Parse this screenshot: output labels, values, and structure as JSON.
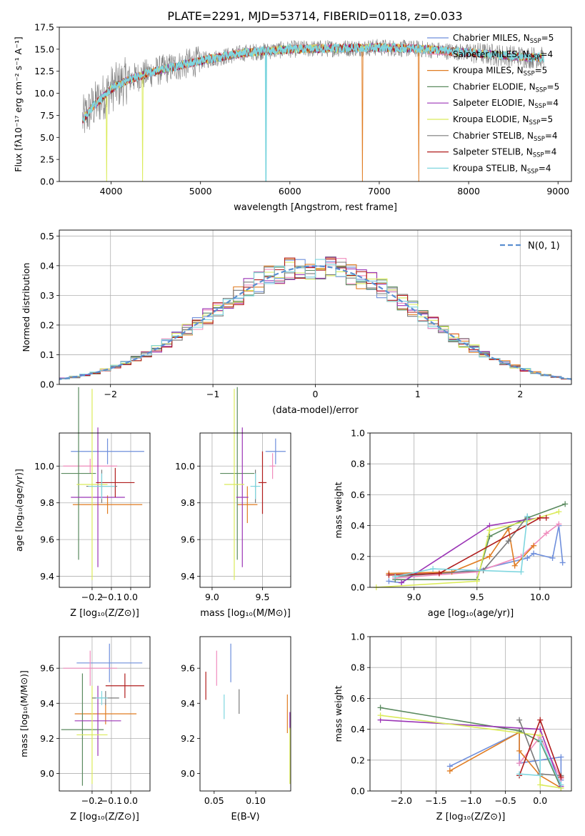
{
  "title": "PLATE=2291, MJD=53714, FIBERID=0118, z=0.033",
  "colors": {
    "Chabrier MILES": "#6f8fdc",
    "Salpeter MILES": "#f08cbd",
    "Kroupa MILES": "#e07c22",
    "Chabrier ELODIE": "#5a8a5f",
    "Salpeter ELODIE": "#9b35b6",
    "Kroupa ELODIE": "#dbeb5a",
    "Chabrier STELIB": "#7a7a7a",
    "Salpeter STELIB": "#b01c1c",
    "Kroupa STELIB": "#7fd6df",
    "normal": "#5b8fd0"
  },
  "chart_data": [
    {
      "id": "spectrum",
      "type": "line",
      "xlabel": "wavelength [Angstrom, rest frame]",
      "ylabel": "Flux [fλ10⁻¹⁷ erg cm⁻² s⁻¹ A⁻¹]",
      "xlim": [
        3420,
        9150
      ],
      "ylim": [
        0,
        17.5
      ],
      "xticks": [
        4000,
        5000,
        6000,
        7000,
        8000,
        9000
      ],
      "yticks": [
        0.0,
        2.5,
        5.0,
        7.5,
        10.0,
        12.5,
        15.0,
        17.5
      ],
      "ytick_labels": [
        "0.0",
        "2.5",
        "5.0",
        "7.5",
        "10.0",
        "12.5",
        "15.0",
        "17.5"
      ],
      "grid": false,
      "continuum": {
        "x": [
          3680,
          3800,
          4000,
          4200,
          4500,
          5000,
          5500,
          6000,
          6500,
          7000,
          7500,
          8000,
          8500,
          8840
        ],
        "y": [
          7.0,
          8.5,
          10.5,
          11.6,
          12.5,
          13.7,
          14.6,
          15.0,
          15.1,
          15.2,
          15.0,
          14.6,
          14.2,
          14.0
        ]
      },
      "legend": {
        "placement": "upper right",
        "entries": [
          {
            "key": "Chabrier MILES",
            "label": "Chabrier MILES, N",
            "sub": "SSP",
            "suffix": "=5"
          },
          {
            "key": "Salpeter MILES",
            "label": "Salpeter MILES, N",
            "sub": "SSP",
            "suffix": "=4"
          },
          {
            "key": "Kroupa MILES",
            "label": "Kroupa MILES, N",
            "sub": "SSP",
            "suffix": "=5"
          },
          {
            "key": "Chabrier ELODIE",
            "label": "Chabrier ELODIE, N",
            "sub": "SSP",
            "suffix": "=5"
          },
          {
            "key": "Salpeter ELODIE",
            "label": "Salpeter ELODIE, N",
            "sub": "SSP",
            "suffix": "=4"
          },
          {
            "key": "Kroupa ELODIE",
            "label": "Kroupa ELODIE, N",
            "sub": "SSP",
            "suffix": "=5"
          },
          {
            "key": "Chabrier STELIB",
            "label": "Chabrier STELIB, N",
            "sub": "SSP",
            "suffix": "=4"
          },
          {
            "key": "Salpeter STELIB",
            "label": "Salpeter STELIB, N",
            "sub": "SSP",
            "suffix": "=4"
          },
          {
            "key": "Kroupa STELIB",
            "label": "Kroupa STELIB, N",
            "sub": "SSP",
            "suffix": "=4"
          }
        ]
      }
    },
    {
      "id": "residuals",
      "type": "line",
      "xlabel": "(data-model)/error",
      "ylabel": "Normed distribution",
      "xlim": [
        -2.5,
        2.5
      ],
      "ylim": [
        0,
        0.52
      ],
      "xticks": [
        -2,
        -1,
        0,
        1,
        2
      ],
      "xtick_labels": [
        "−2",
        "−1",
        "0",
        "1",
        "2"
      ],
      "yticks": [
        0.0,
        0.1,
        0.2,
        0.3,
        0.4,
        0.5
      ],
      "ytick_labels": [
        "0.0",
        "0.1",
        "0.2",
        "0.3",
        "0.4",
        "0.5"
      ],
      "grid": true,
      "legend_label": "N(0, 1)",
      "legend_placement": "upper right",
      "bin_width": 0.1
    },
    {
      "id": "age-vs-z",
      "type": "scatter",
      "xlabel": "Z [log₁₀(Z/Z⊙)]",
      "ylabel": "age  [log₁₀(age/yr)]",
      "xlim": [
        -0.37,
        0.1
      ],
      "ylim": [
        9.34,
        10.18
      ],
      "xticks": [
        -0.2,
        -0.1,
        0.0
      ],
      "xtick_labels": [
        "−0.2",
        "−0.1",
        "0.0"
      ],
      "yticks": [
        9.4,
        9.6,
        9.8,
        10.0
      ],
      "ytick_labels": [
        "9.4",
        "9.6",
        "9.8",
        "10.0"
      ],
      "grid": true,
      "points": [
        {
          "key": "Chabrier MILES",
          "x": -0.12,
          "y": 10.08,
          "xerr": 0.19,
          "yerr": 0.07
        },
        {
          "key": "Salpeter MILES",
          "x": -0.21,
          "y": 10.0,
          "xerr": 0.14,
          "yerr": 0.04
        },
        {
          "key": "Kroupa MILES",
          "x": -0.12,
          "y": 9.79,
          "xerr": 0.18,
          "yerr": 0.05
        },
        {
          "key": "Chabrier ELODIE",
          "x": -0.27,
          "y": 9.96,
          "xerr": 0.09,
          "yerr": 0.47
        },
        {
          "key": "Salpeter ELODIE",
          "x": -0.17,
          "y": 9.83,
          "xerr": 0.14,
          "yerr": 0.38
        },
        {
          "key": "Kroupa ELODIE",
          "x": -0.2,
          "y": 9.9,
          "xerr": 0.08,
          "yerr": 0.52
        },
        {
          "key": "Chabrier STELIB",
          "x": -0.15,
          "y": 9.89,
          "xerr": 0.08,
          "yerr": 0.09
        },
        {
          "key": "Salpeter STELIB",
          "x": -0.08,
          "y": 9.91,
          "xerr": 0.1,
          "yerr": 0.08
        },
        {
          "key": "Kroupa STELIB",
          "x": -0.15,
          "y": 9.89,
          "xerr": 0.07,
          "yerr": 0.07
        }
      ]
    },
    {
      "id": "age-vs-mass",
      "type": "scatter",
      "xlabel": "mass [log₁₀(M/M⊙)]",
      "ylabel": "",
      "xlim": [
        8.88,
        9.78
      ],
      "ylim": [
        9.34,
        10.18
      ],
      "xticks": [
        9.0,
        9.5
      ],
      "xtick_labels": [
        "9.0",
        "9.5"
      ],
      "yticks": [
        9.4,
        9.6,
        9.8,
        10.0
      ],
      "ytick_labels": [
        "9.4",
        "9.6",
        "9.8",
        "10.0"
      ],
      "grid": true,
      "points": [
        {
          "key": "Chabrier MILES",
          "x": 9.63,
          "y": 10.08,
          "xerr": 0.1,
          "yerr": 0.07
        },
        {
          "key": "Salpeter MILES",
          "x": 9.6,
          "y": 10.0,
          "xerr": 0.03,
          "yerr": 0.07
        },
        {
          "key": "Kroupa MILES",
          "x": 9.35,
          "y": 9.79,
          "xerr": 0.1,
          "yerr": 0.1
        },
        {
          "key": "Chabrier ELODIE",
          "x": 9.25,
          "y": 9.96,
          "xerr": 0.17,
          "yerr": 0.47
        },
        {
          "key": "Salpeter ELODIE",
          "x": 9.3,
          "y": 9.83,
          "xerr": 0.06,
          "yerr": 0.38
        },
        {
          "key": "Kroupa ELODIE",
          "x": 9.22,
          "y": 9.9,
          "xerr": 0.1,
          "yerr": 0.52
        },
        {
          "key": "Chabrier STELIB",
          "x": 9.43,
          "y": 9.89,
          "xerr": 0.01,
          "yerr": 0.09
        },
        {
          "key": "Salpeter STELIB",
          "x": 9.5,
          "y": 9.91,
          "xerr": 0.04,
          "yerr": 0.17
        },
        {
          "key": "Kroupa STELIB",
          "x": 9.43,
          "y": 9.89,
          "xerr": 0.05,
          "yerr": 0.07
        }
      ]
    },
    {
      "id": "mass-weight-vs-age",
      "type": "line",
      "xlabel": "age  [log₁₀(age/yr)]",
      "ylabel": "mass weight",
      "xlim": [
        8.65,
        10.25
      ],
      "ylim": [
        0,
        1.0
      ],
      "xticks": [
        9.0,
        9.5,
        10.0
      ],
      "xtick_labels": [
        "9.0",
        "9.5",
        "10.0"
      ],
      "yticks": [
        0.0,
        0.2,
        0.4,
        0.6,
        0.8,
        1.0
      ],
      "ytick_labels": [
        "0.0",
        "0.2",
        "0.4",
        "0.6",
        "0.8",
        "1.0"
      ],
      "grid": true,
      "series": [
        {
          "key": "Chabrier MILES",
          "x": [
            8.8,
            8.9,
            9.0,
            9.5,
            9.9,
            9.95,
            10.1,
            10.15,
            10.18
          ],
          "y": [
            0.04,
            0.03,
            0.08,
            0.11,
            0.19,
            0.22,
            0.19,
            0.4,
            0.16
          ]
        },
        {
          "key": "Salpeter MILES",
          "x": [
            8.85,
            9.5,
            9.85,
            10.05,
            10.15
          ],
          "y": [
            0.06,
            0.1,
            0.2,
            0.35,
            0.41
          ]
        },
        {
          "key": "Kroupa MILES",
          "x": [
            8.8,
            9.3,
            9.6,
            9.75,
            9.8,
            9.95
          ],
          "y": [
            0.09,
            0.1,
            0.2,
            0.38,
            0.14,
            0.27
          ]
        },
        {
          "key": "Chabrier ELODIE",
          "x": [
            8.85,
            9.5,
            9.6,
            9.9,
            10.2
          ],
          "y": [
            0.05,
            0.05,
            0.33,
            0.45,
            0.54
          ]
        },
        {
          "key": "Salpeter ELODIE",
          "x": [
            8.9,
            9.6,
            9.9,
            10.0
          ],
          "y": [
            0.03,
            0.4,
            0.44,
            0.45
          ]
        },
        {
          "key": "Kroupa ELODIE",
          "x": [
            8.7,
            9.5,
            9.6,
            9.9,
            10.15
          ],
          "y": [
            0.0,
            0.04,
            0.37,
            0.43,
            0.49
          ]
        },
        {
          "key": "Chabrier STELIB",
          "x": [
            8.85,
            9.55,
            9.75,
            9.9
          ],
          "y": [
            0.07,
            0.11,
            0.3,
            0.46
          ]
        },
        {
          "key": "Salpeter STELIB",
          "x": [
            8.8,
            9.2,
            10.0,
            10.05
          ],
          "y": [
            0.08,
            0.09,
            0.45,
            0.45
          ]
        },
        {
          "key": "Kroupa STELIB",
          "x": [
            8.85,
            9.15,
            9.85,
            9.9
          ],
          "y": [
            0.07,
            0.12,
            0.1,
            0.46
          ]
        }
      ]
    },
    {
      "id": "mass-vs-z",
      "type": "scatter",
      "xlabel": "Z [log₁₀(Z/Z⊙)]",
      "ylabel": "mass [log₁₀(M/M⊙)]",
      "xlim": [
        -0.37,
        0.1
      ],
      "ylim": [
        8.9,
        9.78
      ],
      "xticks": [
        -0.2,
        -0.1,
        0.0
      ],
      "xtick_labels": [
        "−0.2",
        "−0.1",
        "0.0"
      ],
      "yticks": [
        9.0,
        9.2,
        9.4,
        9.6
      ],
      "ytick_labels": [
        "9.0",
        "9.2",
        "9.4",
        "9.6"
      ],
      "grid": true,
      "points": [
        {
          "key": "Chabrier MILES",
          "x": -0.11,
          "y": 9.63,
          "xerr": 0.17,
          "yerr": 0.11
        },
        {
          "key": "Salpeter MILES",
          "x": -0.21,
          "y": 9.6,
          "xerr": 0.14,
          "yerr": 0.1
        },
        {
          "key": "Kroupa MILES",
          "x": -0.13,
          "y": 9.34,
          "xerr": 0.16,
          "yerr": 0.06
        },
        {
          "key": "Chabrier ELODIE",
          "x": -0.25,
          "y": 9.25,
          "xerr": 0.11,
          "yerr": 0.32
        },
        {
          "key": "Salpeter ELODIE",
          "x": -0.17,
          "y": 9.3,
          "xerr": 0.12,
          "yerr": 0.2
        },
        {
          "key": "Kroupa ELODIE",
          "x": -0.2,
          "y": 9.22,
          "xerr": 0.08,
          "yerr": 0.28
        },
        {
          "key": "Chabrier STELIB",
          "x": -0.13,
          "y": 9.43,
          "xerr": 0.07,
          "yerr": 0.04
        },
        {
          "key": "Salpeter STELIB",
          "x": -0.03,
          "y": 9.5,
          "xerr": 0.1,
          "yerr": 0.07
        },
        {
          "key": "Kroupa STELIB",
          "x": -0.15,
          "y": 9.43,
          "xerr": 0.03,
          "yerr": 0.04
        }
      ]
    },
    {
      "id": "mass-vs-ebv",
      "type": "scatter",
      "xlabel": "E(B-V)",
      "ylabel": "",
      "xlim": [
        0.033,
        0.142
      ],
      "ylim": [
        8.9,
        9.78
      ],
      "xticks": [
        0.05,
        0.1
      ],
      "xtick_labels": [
        "0.05",
        "0.10"
      ],
      "yticks": [
        9.0,
        9.2,
        9.4,
        9.6
      ],
      "ytick_labels": [
        "9.0",
        "9.2",
        "9.4",
        "9.6"
      ],
      "grid": false,
      "points": [
        {
          "key": "Salpeter STELIB",
          "x": 0.04,
          "y": 9.5,
          "xerr": 0.0,
          "yerr": 0.08
        },
        {
          "key": "Salpeter MILES",
          "x": 0.053,
          "y": 9.6,
          "xerr": 0.0,
          "yerr": 0.1
        },
        {
          "key": "Kroupa STELIB",
          "x": 0.062,
          "y": 9.38,
          "xerr": 0.0,
          "yerr": 0.07
        },
        {
          "key": "Chabrier MILES",
          "x": 0.07,
          "y": 9.63,
          "xerr": 0.0,
          "yerr": 0.11
        },
        {
          "key": "Chabrier STELIB",
          "x": 0.08,
          "y": 9.41,
          "xerr": 0.0,
          "yerr": 0.07
        },
        {
          "key": "Kroupa MILES",
          "x": 0.138,
          "y": 9.34,
          "xerr": 0.0,
          "yerr": 0.11
        },
        {
          "key": "Salpeter ELODIE",
          "x": 0.141,
          "y": 9.3,
          "xerr": 0.0,
          "yerr": 0.05
        },
        {
          "key": "Kroupa ELODIE",
          "x": 0.141,
          "y": 9.1,
          "xerr": 0.0,
          "yerr": 0.16
        }
      ]
    },
    {
      "id": "mass-weight-vs-z",
      "type": "line",
      "xlabel": "Z [log₁₀(Z/Z⊙)]",
      "ylabel": "mass weight",
      "xlim": [
        -2.45,
        0.45
      ],
      "ylim": [
        0,
        1.0
      ],
      "xticks": [
        -2.0,
        -1.5,
        -1.0,
        -0.5,
        0.0
      ],
      "xtick_labels": [
        "−2.0",
        "−1.5",
        "−1.0",
        "−0.5",
        "0.0"
      ],
      "yticks": [
        0.0,
        0.2,
        0.4,
        0.6,
        0.8,
        1.0
      ],
      "ytick_labels": [
        "0.0",
        "0.2",
        "0.4",
        "0.6",
        "0.8",
        "1.0"
      ],
      "grid": true,
      "series": [
        {
          "key": "Chabrier MILES",
          "x": [
            -1.3,
            -0.3,
            -0.3,
            0.3,
            0.3
          ],
          "y": [
            0.16,
            0.38,
            0.18,
            0.22,
            0.07
          ]
        },
        {
          "key": "Salpeter MILES",
          "x": [
            -0.3,
            0.0,
            0.3
          ],
          "y": [
            0.18,
            0.35,
            0.08
          ]
        },
        {
          "key": "Kroupa MILES",
          "x": [
            -1.3,
            -0.3,
            -0.3,
            0.0,
            0.3
          ],
          "y": [
            0.13,
            0.38,
            0.26,
            0.1,
            0.02
          ]
        },
        {
          "key": "Chabrier ELODIE",
          "x": [
            -2.3,
            -0.3,
            0.0,
            0.3
          ],
          "y": [
            0.54,
            0.39,
            0.32,
            0.02
          ]
        },
        {
          "key": "Salpeter ELODIE",
          "x": [
            -2.3,
            0.0,
            0.3
          ],
          "y": [
            0.46,
            0.4,
            0.03
          ]
        },
        {
          "key": "Kroupa ELODIE",
          "x": [
            -2.3,
            0.0,
            0.0,
            0.3
          ],
          "y": [
            0.49,
            0.36,
            0.04,
            0.02
          ]
        },
        {
          "key": "Chabrier STELIB",
          "x": [
            -0.3,
            0.0,
            0.3
          ],
          "y": [
            0.46,
            0.11,
            0.1
          ]
        },
        {
          "key": "Salpeter STELIB",
          "x": [
            -0.3,
            0.0,
            0.3
          ],
          "y": [
            0.1,
            0.46,
            0.09
          ]
        },
        {
          "key": "Kroupa STELIB",
          "x": [
            -0.3,
            0.0,
            0.0,
            0.3
          ],
          "y": [
            0.11,
            0.1,
            0.33,
            0.04
          ]
        }
      ]
    }
  ]
}
